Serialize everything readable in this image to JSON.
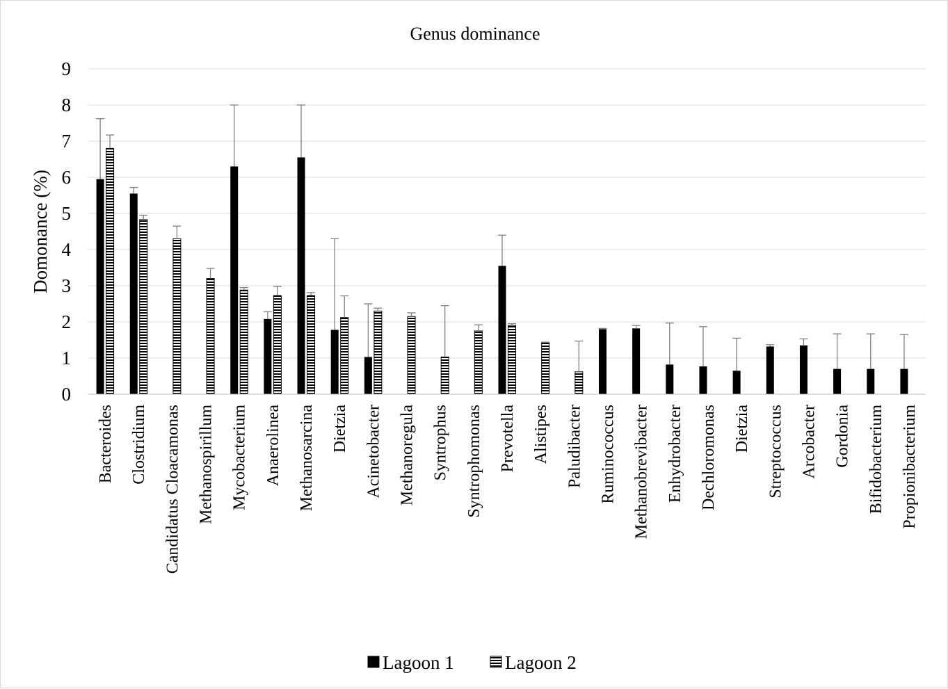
{
  "chart_data": {
    "type": "bar",
    "title": "Genus dominance",
    "xlabel": "",
    "ylabel": "Domonance (%)",
    "ylim": [
      0,
      9
    ],
    "yticks": [
      0,
      1,
      2,
      3,
      4,
      5,
      6,
      7,
      8,
      9
    ],
    "grid": true,
    "legend_position": "bottom",
    "categories": [
      "Bacteroides",
      "Clostridium",
      "Candidatus Cloacamonas",
      "Methanospirillum",
      "Mycobacterium",
      "Anaerolinea",
      "Methanosarcina",
      "Dietzia",
      "Acinetobacter",
      "Methanoregula",
      "Syntrophus",
      "Syntrophomonas",
      "Prevotella",
      "Alistipes",
      "Paludibacter",
      "Ruminococcus",
      "Methanobrevibacter",
      "Enhydrobacter",
      "Dechloromonas",
      "Dietzia",
      "Streptococcus",
      "Arcobacter",
      "Gordonia",
      "Bifidobacterium",
      "Propionibacterium"
    ],
    "series": [
      {
        "name": "Lagoon 1",
        "color": "#000000",
        "pattern": "solid",
        "values": [
          5.95,
          5.55,
          0,
          0,
          6.3,
          2.08,
          6.55,
          1.78,
          1.03,
          0,
          0,
          0,
          3.55,
          0,
          0,
          1.8,
          1.82,
          0.82,
          0.77,
          0.65,
          1.32,
          1.35,
          0.7,
          0.7,
          0.7
        ],
        "error_plus": [
          1.67,
          0.17,
          0,
          0,
          1.7,
          0.2,
          1.45,
          2.52,
          1.47,
          0,
          0,
          0,
          0.85,
          0,
          0,
          0.02,
          0.08,
          1.15,
          1.1,
          0.9,
          0.05,
          0.18,
          0.97,
          0.97,
          0.95
        ]
      },
      {
        "name": "Lagoon 2",
        "color": "#000000",
        "pattern": "horizontal-stripes",
        "values": [
          6.8,
          4.83,
          4.3,
          3.2,
          2.88,
          2.73,
          2.73,
          2.12,
          2.3,
          2.15,
          1.03,
          1.75,
          1.9,
          1.42,
          0.62,
          0,
          0,
          0,
          0,
          0,
          0,
          0,
          0,
          0,
          0
        ],
        "error_plus": [
          0.37,
          0.12,
          0.35,
          0.28,
          0.07,
          0.25,
          0.08,
          0.6,
          0.08,
          0.1,
          1.42,
          0.17,
          0.05,
          0.02,
          0.85,
          0,
          0,
          0,
          0,
          0,
          0,
          0,
          0,
          0,
          0
        ]
      }
    ]
  }
}
